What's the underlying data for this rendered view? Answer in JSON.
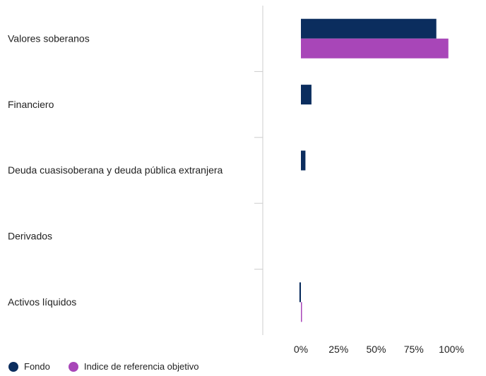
{
  "chart_data": {
    "type": "bar",
    "orientation": "horizontal",
    "categories": [
      "Valores soberanos",
      "Financiero",
      "Deuda cuasisoberana y deuda pública extranjera",
      "Derivados",
      "Activos líquidos"
    ],
    "series": [
      {
        "name": "Fondo",
        "color": "#0b2d5e",
        "values": [
          90,
          7,
          3,
          0,
          -1
        ]
      },
      {
        "name": "Indice de referencia objetivo",
        "color": "#a846b8",
        "values": [
          98,
          0,
          0,
          0,
          0.5
        ]
      }
    ],
    "x_ticks": [
      "0%",
      "25%",
      "50%",
      "75%",
      "100%"
    ],
    "x_tick_values": [
      0,
      25,
      50,
      75,
      100
    ],
    "xlim": [
      -25,
      120
    ],
    "grid": false,
    "legend_position": "bottom-left"
  }
}
